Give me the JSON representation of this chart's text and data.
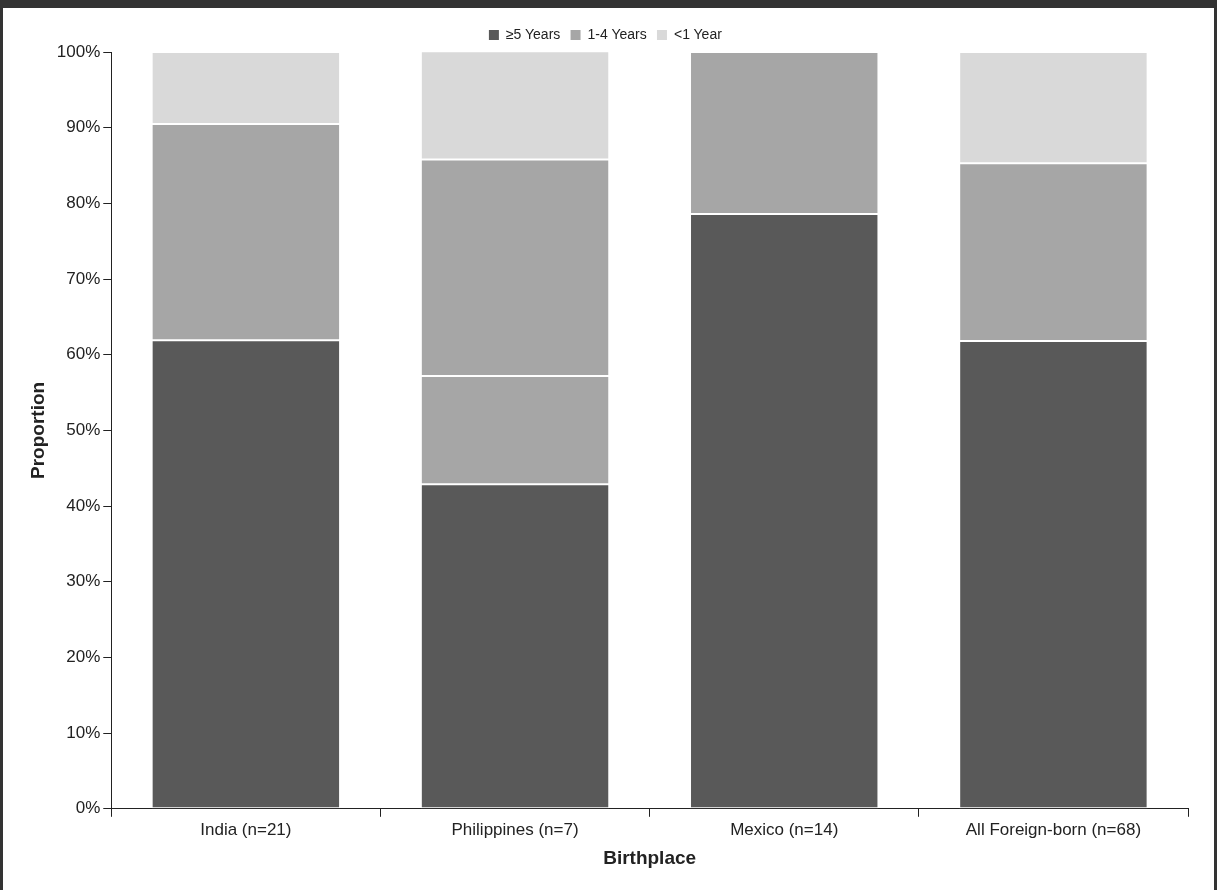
{
  "chart_data": {
    "type": "bar",
    "stacked": true,
    "xlabel": "Birthplace",
    "ylabel": "Proportion",
    "categories": [
      "India (n=21)",
      "Philippines (n=7)",
      "Mexico (n=14)",
      "All Foreign-born (n=68)"
    ],
    "series": [
      {
        "name": "≥5 Years",
        "color": "#595959",
        "values": [
          61.9,
          42.9,
          78.6,
          61.8
        ]
      },
      {
        "name": "1-4 Years",
        "color": "#a6a6a6",
        "values": [
          28.6,
          14.3,
          21.4,
          23.5
        ]
      },
      {
        "color": "#a6a6a6",
        "values": [
          null,
          28.6,
          null,
          null
        ]
      },
      {
        "name": "<1 Year",
        "color": "#d9d9d9",
        "values": [
          9.5,
          14.3,
          0,
          14.7
        ]
      }
    ],
    "ylim": [
      0,
      100
    ],
    "yticks": [
      {
        "value": 0,
        "label": "0%"
      },
      {
        "value": 10,
        "label": "10%"
      },
      {
        "value": 20,
        "label": "20%"
      },
      {
        "value": 30,
        "label": "30%"
      },
      {
        "value": 40,
        "label": "40%"
      },
      {
        "value": 50,
        "label": "50%"
      },
      {
        "value": 60,
        "label": "60%"
      },
      {
        "value": 70,
        "label": "70%"
      },
      {
        "value": 80,
        "label": "80%"
      },
      {
        "value": 90,
        "label": "90%"
      },
      {
        "value": 100,
        "label": "100%"
      }
    ],
    "grid": false,
    "legend": "top"
  }
}
